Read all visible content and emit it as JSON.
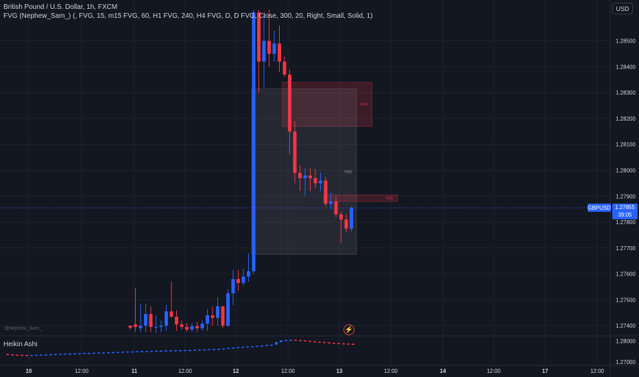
{
  "header": {
    "symbol_line": "British Pound / U.S. Dollar, 1h, FXCM",
    "indicator_line": "FVG (Nephew_Sam_) (, FVG, 15, m15 FVG, 60, H1 FVG, 240, H4 FVG, D, D FVG, Close, 300, 20, Right, Small, Solid, 1)",
    "currency_button": "USD"
  },
  "watermark": "@Nephew_Sam_",
  "subpane": {
    "title": "Heikin Ashi",
    "axis_labels": [
      "1.28000",
      "1.27000"
    ]
  },
  "price_axis": {
    "labels": [
      "1.28500",
      "1.28400",
      "1.28300",
      "1.28200",
      "1.28100",
      "1.28000",
      "1.27900",
      "1.27800",
      "1.27700",
      "1.27600",
      "1.27500",
      "1.27400"
    ]
  },
  "current": {
    "symbol": "GBPUSD",
    "price": "1.27855",
    "countdown": "39:05",
    "value": 1.27855
  },
  "time_axis": {
    "labels": [
      "10",
      "12:00",
      "11",
      "12:00",
      "12",
      "12:00",
      "13",
      "12:00",
      "14",
      "12:00",
      "17",
      "12:00"
    ]
  },
  "fvg_labels": [
    "FVG",
    "FVG",
    "FVG"
  ],
  "colors": {
    "bull": "#2962ff",
    "bear": "#f23645",
    "background": "#131722",
    "grid": "#1e222d",
    "text": "#d1d4dc"
  },
  "chart_data": {
    "type": "candlestick",
    "ylim": [
      1.2735,
      1.2865
    ],
    "candles": [
      {
        "o": 1.274,
        "h": 1.274,
        "l": 1.27385,
        "c": 1.27392
      },
      {
        "o": 1.27405,
        "h": 1.27545,
        "l": 1.27375,
        "c": 1.27395
      },
      {
        "o": 1.2739,
        "h": 1.27485,
        "l": 1.27375,
        "c": 1.274
      },
      {
        "o": 1.274,
        "h": 1.27485,
        "l": 1.27375,
        "c": 1.27445
      },
      {
        "o": 1.27445,
        "h": 1.27475,
        "l": 1.27375,
        "c": 1.27395
      },
      {
        "o": 1.27395,
        "h": 1.2744,
        "l": 1.2737,
        "c": 1.27395
      },
      {
        "o": 1.27395,
        "h": 1.2742,
        "l": 1.27375,
        "c": 1.274
      },
      {
        "o": 1.274,
        "h": 1.2748,
        "l": 1.2738,
        "c": 1.27455
      },
      {
        "o": 1.27455,
        "h": 1.2757,
        "l": 1.2743,
        "c": 1.27435
      },
      {
        "o": 1.27435,
        "h": 1.2746,
        "l": 1.2738,
        "c": 1.27405
      },
      {
        "o": 1.27405,
        "h": 1.2742,
        "l": 1.27385,
        "c": 1.27395
      },
      {
        "o": 1.27395,
        "h": 1.2741,
        "l": 1.27375,
        "c": 1.27385
      },
      {
        "o": 1.27385,
        "h": 1.2741,
        "l": 1.27375,
        "c": 1.27398
      },
      {
        "o": 1.27398,
        "h": 1.27415,
        "l": 1.27375,
        "c": 1.2739
      },
      {
        "o": 1.2739,
        "h": 1.2742,
        "l": 1.2738,
        "c": 1.27408
      },
      {
        "o": 1.27408,
        "h": 1.27465,
        "l": 1.2738,
        "c": 1.2744
      },
      {
        "o": 1.2744,
        "h": 1.27475,
        "l": 1.274,
        "c": 1.2743
      },
      {
        "o": 1.2743,
        "h": 1.2751,
        "l": 1.274,
        "c": 1.27475
      },
      {
        "o": 1.27475,
        "h": 1.27475,
        "l": 1.2739,
        "c": 1.274
      },
      {
        "o": 1.274,
        "h": 1.2754,
        "l": 1.27395,
        "c": 1.27525
      },
      {
        "o": 1.27525,
        "h": 1.27615,
        "l": 1.2748,
        "c": 1.2758
      },
      {
        "o": 1.2758,
        "h": 1.27615,
        "l": 1.27535,
        "c": 1.27565
      },
      {
        "o": 1.27565,
        "h": 1.2762,
        "l": 1.27555,
        "c": 1.2759
      },
      {
        "o": 1.2759,
        "h": 1.2768,
        "l": 1.2757,
        "c": 1.2761
      },
      {
        "o": 1.2761,
        "h": 1.2862,
        "l": 1.276,
        "c": 1.2861
      },
      {
        "o": 1.2861,
        "h": 1.2862,
        "l": 1.283,
        "c": 1.2842
      },
      {
        "o": 1.2842,
        "h": 1.286,
        "l": 1.2832,
        "c": 1.285
      },
      {
        "o": 1.285,
        "h": 1.2862,
        "l": 1.284,
        "c": 1.2845
      },
      {
        "o": 1.2845,
        "h": 1.2854,
        "l": 1.2842,
        "c": 1.2849
      },
      {
        "o": 1.2849,
        "h": 1.2856,
        "l": 1.2838,
        "c": 1.2842
      },
      {
        "o": 1.2842,
        "h": 1.2844,
        "l": 1.2836,
        "c": 1.2837
      },
      {
        "o": 1.2837,
        "h": 1.2839,
        "l": 1.2806,
        "c": 1.2815
      },
      {
        "o": 1.2815,
        "h": 1.2819,
        "l": 1.2795,
        "c": 1.2799
      },
      {
        "o": 1.2799,
        "h": 1.2802,
        "l": 1.2792,
        "c": 1.2797
      },
      {
        "o": 1.2797,
        "h": 1.2801,
        "l": 1.279,
        "c": 1.2798
      },
      {
        "o": 1.2798,
        "h": 1.2801,
        "l": 1.2792,
        "c": 1.2797
      },
      {
        "o": 1.2797,
        "h": 1.28005,
        "l": 1.2793,
        "c": 1.2795
      },
      {
        "o": 1.2795,
        "h": 1.2799,
        "l": 1.2792,
        "c": 1.2796
      },
      {
        "o": 1.2796,
        "h": 1.27975,
        "l": 1.2786,
        "c": 1.2787
      },
      {
        "o": 1.2787,
        "h": 1.27915,
        "l": 1.2785,
        "c": 1.2788
      },
      {
        "o": 1.2788,
        "h": 1.279,
        "l": 1.2782,
        "c": 1.2783
      },
      {
        "o": 1.2783,
        "h": 1.2784,
        "l": 1.2772,
        "c": 1.2781
      },
      {
        "o": 1.2781,
        "h": 1.2783,
        "l": 1.2776,
        "c": 1.27775
      },
      {
        "o": 1.27775,
        "h": 1.2786,
        "l": 1.27765,
        "c": 1.27855
      }
    ],
    "fvg_zones": [
      {
        "type": "bearish",
        "label": "FVG",
        "top": 1.2834,
        "bottom": 1.2817,
        "from_index": 30,
        "to_index": 47
      },
      {
        "type": "bullish",
        "label": "FVG",
        "top": 1.28315,
        "bottom": 1.27675,
        "from_index": 24,
        "to_index": 44
      },
      {
        "type": "bearish",
        "label": "FVG",
        "top": 1.27905,
        "bottom": 1.2788,
        "from_index": 38,
        "to_index": 52
      }
    ],
    "heikin_ashi": {
      "ylim": [
        1.269,
        1.2815
      ],
      "values": [
        1.2738,
        1.2736,
        1.2735,
        1.2734,
        1.2733,
        1.2732,
        1.2733,
        1.2734,
        1.2735,
        1.2736,
        1.2737,
        1.2738,
        1.2739,
        1.274,
        1.274,
        1.2741,
        1.2742,
        1.2743,
        1.2743,
        1.2744,
        1.2745,
        1.2745,
        1.2746,
        1.2747,
        1.2748,
        1.2749,
        1.275,
        1.275,
        1.2751,
        1.2752,
        1.2752,
        1.2753,
        1.2754,
        1.2754,
        1.2755,
        1.2755,
        1.2756,
        1.2756,
        1.2757,
        1.2757,
        1.2758,
        1.2759,
        1.276,
        1.2761,
        1.2762,
        1.2763,
        1.2765,
        1.2767,
        1.2769,
        1.2771,
        1.2772,
        1.2774,
        1.2775,
        1.2777,
        1.2779,
        1.2781,
        1.2783,
        1.2795,
        1.2803,
        1.2805,
        1.2806,
        1.2805,
        1.2803,
        1.2801,
        1.2799,
        1.2797,
        1.2796,
        1.2794,
        1.2792,
        1.2791,
        1.2789,
        1.2788,
        1.2787,
        1.2786
      ]
    }
  }
}
